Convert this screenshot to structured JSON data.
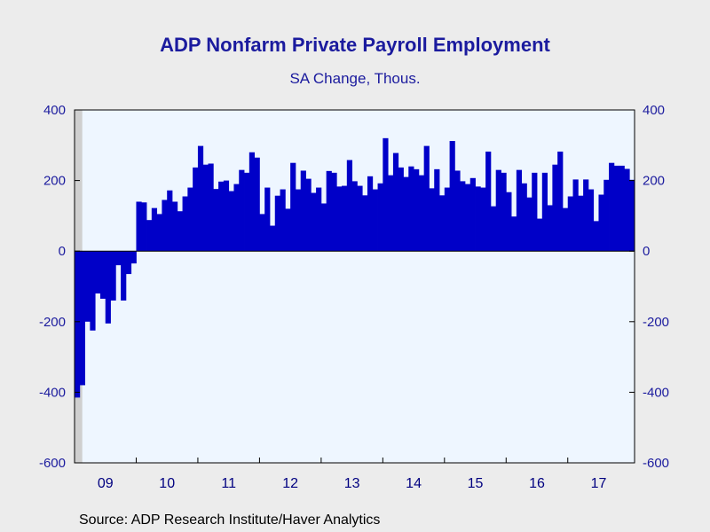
{
  "chart_data": {
    "type": "bar",
    "title": "ADP Nonfarm Private Payroll Employment",
    "subtitle": "SA Change, Thous.",
    "source": "Source:  ADP Research Institute/Haver Analytics",
    "ylim": [
      -600,
      400
    ],
    "yticks": [
      400,
      200,
      0,
      -200,
      -400,
      -600
    ],
    "yticks_right": [
      400,
      200,
      0,
      -200,
      -400,
      -600
    ],
    "xtick_labels": [
      "09",
      "10",
      "11",
      "12",
      "13",
      "14",
      "15",
      "16",
      "17"
    ],
    "start_month": "2009-01",
    "recession_shading_months": 6,
    "colors": {
      "bar": "#0000c8",
      "plot_bg": "#eef6ff",
      "recession": "#cfcfcf",
      "axis_text": "#1b1b9e"
    },
    "values": [
      -415,
      -380,
      -200,
      -225,
      -120,
      -135,
      -205,
      -140,
      -40,
      -140,
      -65,
      -35,
      140,
      138,
      88,
      122,
      105,
      145,
      172,
      140,
      113,
      155,
      180,
      237,
      298,
      245,
      248,
      176,
      197,
      200,
      170,
      190,
      230,
      222,
      280,
      265,
      105,
      180,
      72,
      157,
      175,
      120,
      250,
      175,
      228,
      205,
      165,
      180,
      135,
      227,
      222,
      183,
      185,
      258,
      198,
      185,
      158,
      212,
      175,
      192,
      320,
      215,
      278,
      237,
      210,
      240,
      232,
      215,
      298,
      178,
      232,
      158,
      180,
      312,
      228,
      198,
      190,
      207,
      183,
      180,
      282,
      127,
      230,
      222,
      167,
      98,
      230,
      192,
      152,
      222,
      92,
      222,
      130,
      245,
      282,
      122,
      155,
      203,
      157,
      203,
      175,
      85,
      160,
      202,
      250,
      242,
      242,
      233,
      202
    ]
  }
}
